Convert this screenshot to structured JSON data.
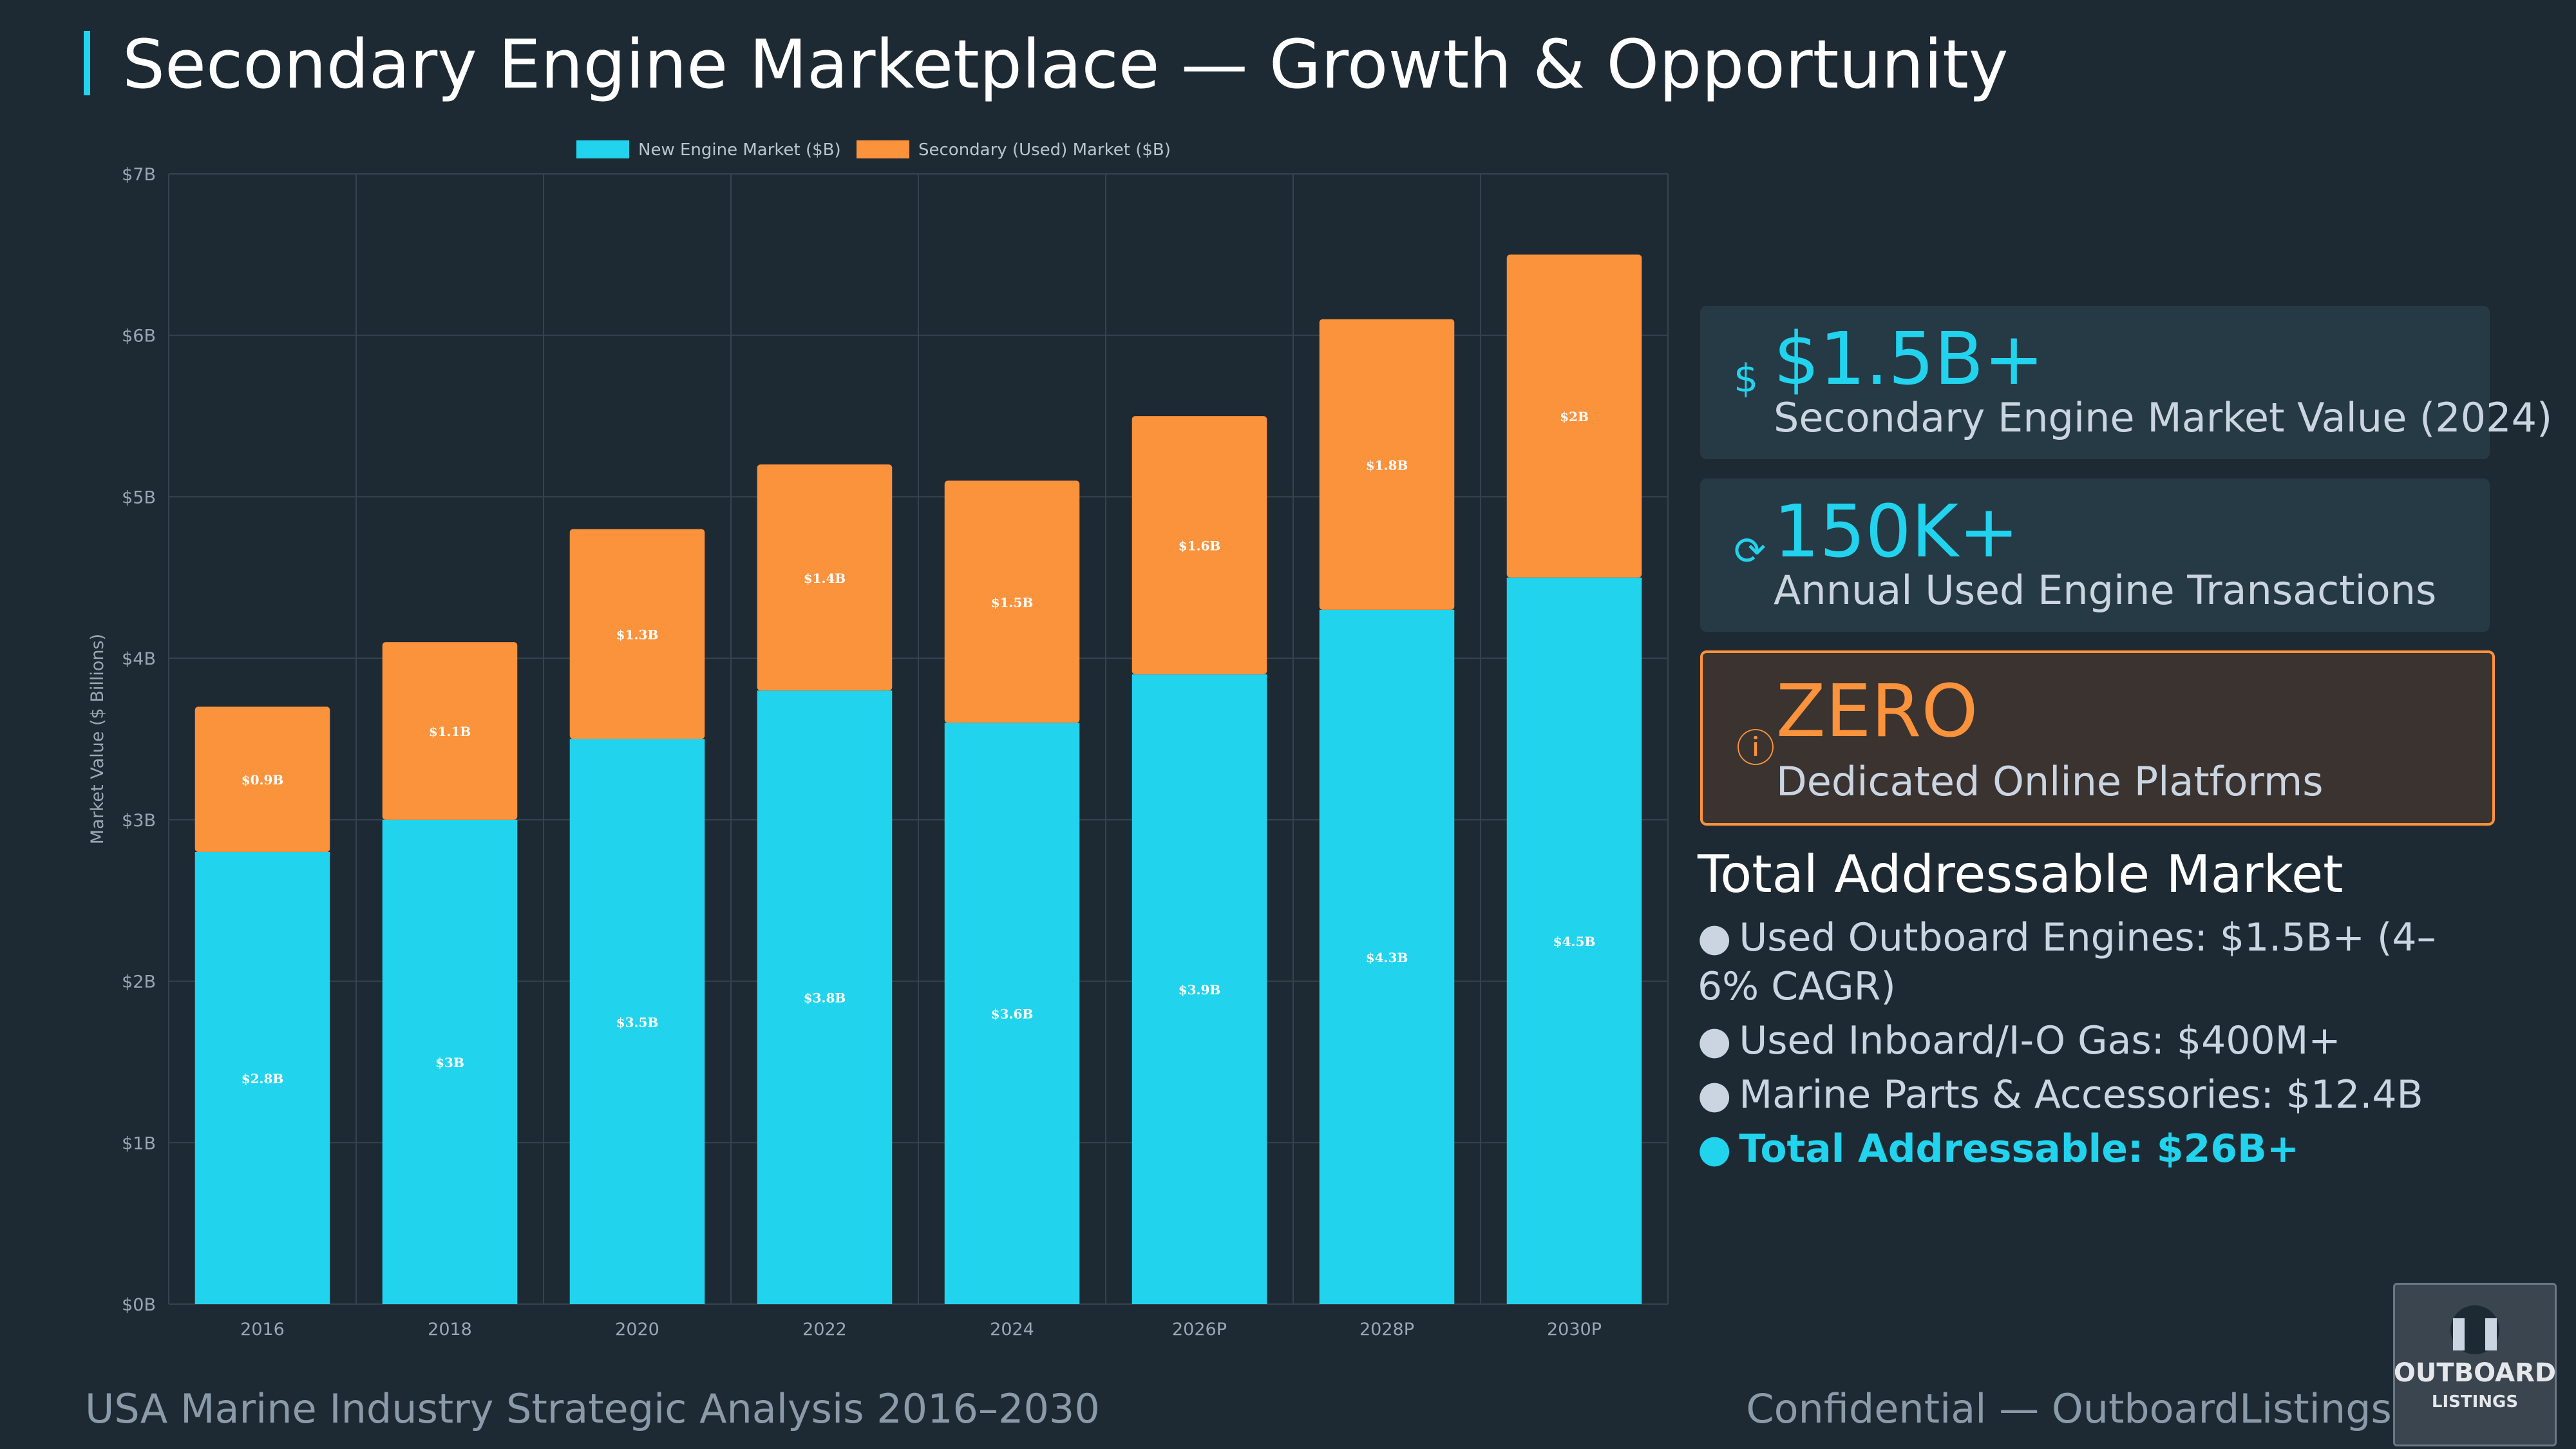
{
  "header": {
    "title": "Secondary Engine Marketplace — Growth & Opportunity"
  },
  "chart_data": {
    "type": "bar",
    "stacked": true,
    "categories": [
      "2016",
      "2018",
      "2020",
      "2022",
      "2024",
      "2026P",
      "2028P",
      "2030P"
    ],
    "series": [
      {
        "name": "New Engine Market ($B)",
        "color": "#22d3ee",
        "values": [
          2.8,
          3.0,
          3.5,
          3.8,
          3.6,
          3.9,
          4.3,
          4.5
        ],
        "labels": [
          "$2.8B",
          "$3B",
          "$3.5B",
          "$3.8B",
          "$3.6B",
          "$3.9B",
          "$4.3B",
          "$4.5B"
        ]
      },
      {
        "name": "Secondary (Used) Market ($B)",
        "color": "#fb923c",
        "values": [
          0.9,
          1.1,
          1.3,
          1.4,
          1.5,
          1.6,
          1.8,
          2.0
        ],
        "labels": [
          "$0.9B",
          "$1.1B",
          "$1.3B",
          "$1.4B",
          "$1.5B",
          "$1.6B",
          "$1.8B",
          "$2B"
        ]
      }
    ],
    "ylabel": "Market Value ($ Billions)",
    "ylim": [
      0,
      7
    ],
    "yticks": [
      "$0B",
      "$1B",
      "$2B",
      "$3B",
      "$4B",
      "$5B",
      "$6B",
      "$7B"
    ],
    "grid": true,
    "legend": "top-center"
  },
  "kpis": [
    {
      "icon": "$",
      "value": "$1.5B+",
      "label": "Secondary Engine Market Value (2024)"
    },
    {
      "icon": "⟳",
      "value": "150K+",
      "label": "Annual Used Engine Transactions"
    },
    {
      "icon": "ⓘ",
      "value": "ZERO",
      "label": "Dedicated Online Platforms"
    }
  ],
  "tam": {
    "title": "Total Addressable Market",
    "items": [
      "Used Outboard Engines: $1.5B+ (4–6% CAGR)",
      "Used Inboard/I-O Gas: $400M+",
      "Marine Parts & Accessories: $12.4B",
      "Total Addressable: $26B+"
    ]
  },
  "footer": {
    "left": "USA Marine Industry Strategic Analysis 2016–2030",
    "right": "Confidential — OutboardListings.com"
  },
  "logo": {
    "text": "OUTBOARD LISTINGS"
  }
}
